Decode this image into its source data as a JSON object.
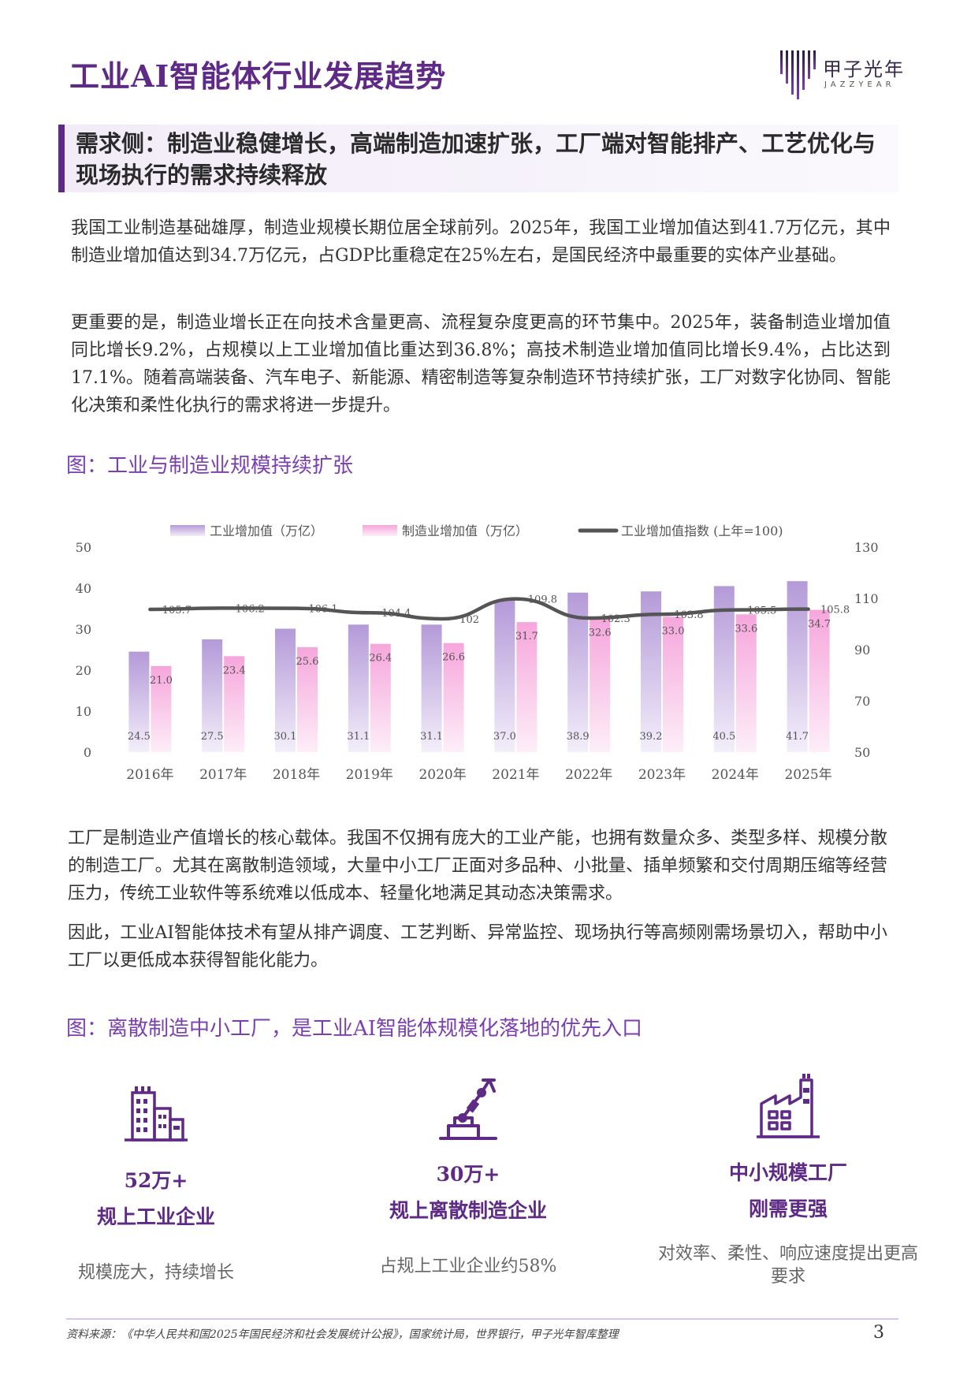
{
  "header": {
    "title": "工业AI智能体行业发展趋势",
    "logo_name": "甲子光年",
    "logo_sub": "JAZZYEAR"
  },
  "section": {
    "heading": "需求侧：制造业稳健增长，高端制造加速扩张，工厂端对智能排产、工艺优化与现场执行的需求持续释放"
  },
  "paragraphs": {
    "p1": "我国工业制造基础雄厚，制造业规模长期位居全球前列。2025年，我国工业增加值达到41.7万亿元，其中制造业增加值达到34.7万亿元，占GDP比重稳定在25%左右，是国民经济中最重要的实体产业基础。",
    "p2": "更重要的是，制造业增长正在向技术含量更高、流程复杂度更高的环节集中。2025年，装备制造业增加值同比增长9.2%，占规模以上工业增加值比重达到36.8%；高技术制造业增加值同比增长9.4%，占比达到17.1%。随着高端装备、汽车电子、新能源、精密制造等复杂制造环节持续扩张，工厂对数字化协同、智能化决策和柔性化执行的需求将进一步提升。",
    "p3": "工厂是制造业产值增长的核心载体。我国不仅拥有庞大的工业产能，也拥有数量众多、类型多样、规模分散的制造工厂。尤其在离散制造领域，大量中小工厂正面对多品种、小批量、插单频繁和交付周期压缩等经营压力，传统工业软件等系统难以低成本、轻量化地满足其动态决策需求。",
    "p4": "因此，工业AI智能体技术有望从排产调度、工艺判断、异常监控、现场执行等高频刚需场景切入，帮助中小工厂以更低成本获得智能化能力。"
  },
  "figure1": {
    "title": "图：工业与制造业规模持续扩张"
  },
  "chart_data": {
    "type": "bar",
    "categories": [
      "2016年",
      "2017年",
      "2018年",
      "2019年",
      "2020年",
      "2021年",
      "2022年",
      "2023年",
      "2024年",
      "2025年"
    ],
    "series": [
      {
        "name": "工业增加值（万亿）",
        "type": "bar",
        "axis": "left",
        "values": [
          24.5,
          27.5,
          30.1,
          31.1,
          31.1,
          37.0,
          38.9,
          39.2,
          40.5,
          41.7
        ],
        "labels": [
          "24.5",
          "27.5",
          "30.1",
          "31.1",
          "31.1",
          "37.0",
          "38.9",
          "39.2",
          "40.5",
          "41.7"
        ],
        "color": "#b49ad8"
      },
      {
        "name": "制造业增加值（万亿）",
        "type": "bar",
        "axis": "left",
        "values": [
          21.0,
          23.4,
          25.6,
          26.4,
          26.6,
          31.7,
          32.6,
          33.0,
          33.6,
          34.7
        ],
        "labels": [
          "21.0",
          "23.4",
          "25.6",
          "26.4",
          "26.6",
          "31.7",
          "32.6",
          "33.0",
          "33.6",
          "34.7"
        ],
        "color": "#f6a6dc"
      },
      {
        "name": "工业增加值指数 (上年=100)",
        "type": "line",
        "axis": "right",
        "values": [
          105.7,
          106.2,
          106.1,
          104.4,
          102,
          109.8,
          102.3,
          103.8,
          105.5,
          105.8
        ],
        "labels": [
          "105.7",
          "106.2",
          "106.1",
          "104.4",
          "102",
          "109.8",
          "102.3",
          "103.8",
          "105.5",
          "105.8"
        ],
        "color": "#555555"
      }
    ],
    "ylim": [
      0,
      50
    ],
    "y_ticks": [
      "0",
      "10",
      "20",
      "30",
      "40",
      "50"
    ],
    "y2lim": [
      50,
      130
    ],
    "y2_ticks": [
      "50",
      "70",
      "90",
      "110",
      "130"
    ],
    "legend": "top",
    "grid": false
  },
  "figure2": {
    "title": "图：离散制造中小工厂，是工业AI智能体规模化落地的优先入口",
    "stats": [
      {
        "icon": "buildings-icon",
        "value": "52万+",
        "label": "规上工业企业",
        "desc": "规模庞大，持续增长"
      },
      {
        "icon": "robot-arm-icon",
        "value": "30万+",
        "label": "规上离散制造企业",
        "desc": "占规上工业企业约58%"
      },
      {
        "icon": "factory-icon",
        "value": "中小规模工厂",
        "label": "刚需更强",
        "desc": "对效率、柔性、响应速度提出更高要求"
      }
    ]
  },
  "footer": {
    "source": "资料来源：《中华人民共和国2025年国民经济和社会发展统计公报》，国家统计局，世界银行，甲子光年智库整理",
    "page": "3"
  },
  "colors": {
    "accent": "#5e2a86",
    "figure_title": "#7b3fb0",
    "bar1": "#b49ad8",
    "bar2": "#f6a6dc",
    "line": "#555555"
  }
}
